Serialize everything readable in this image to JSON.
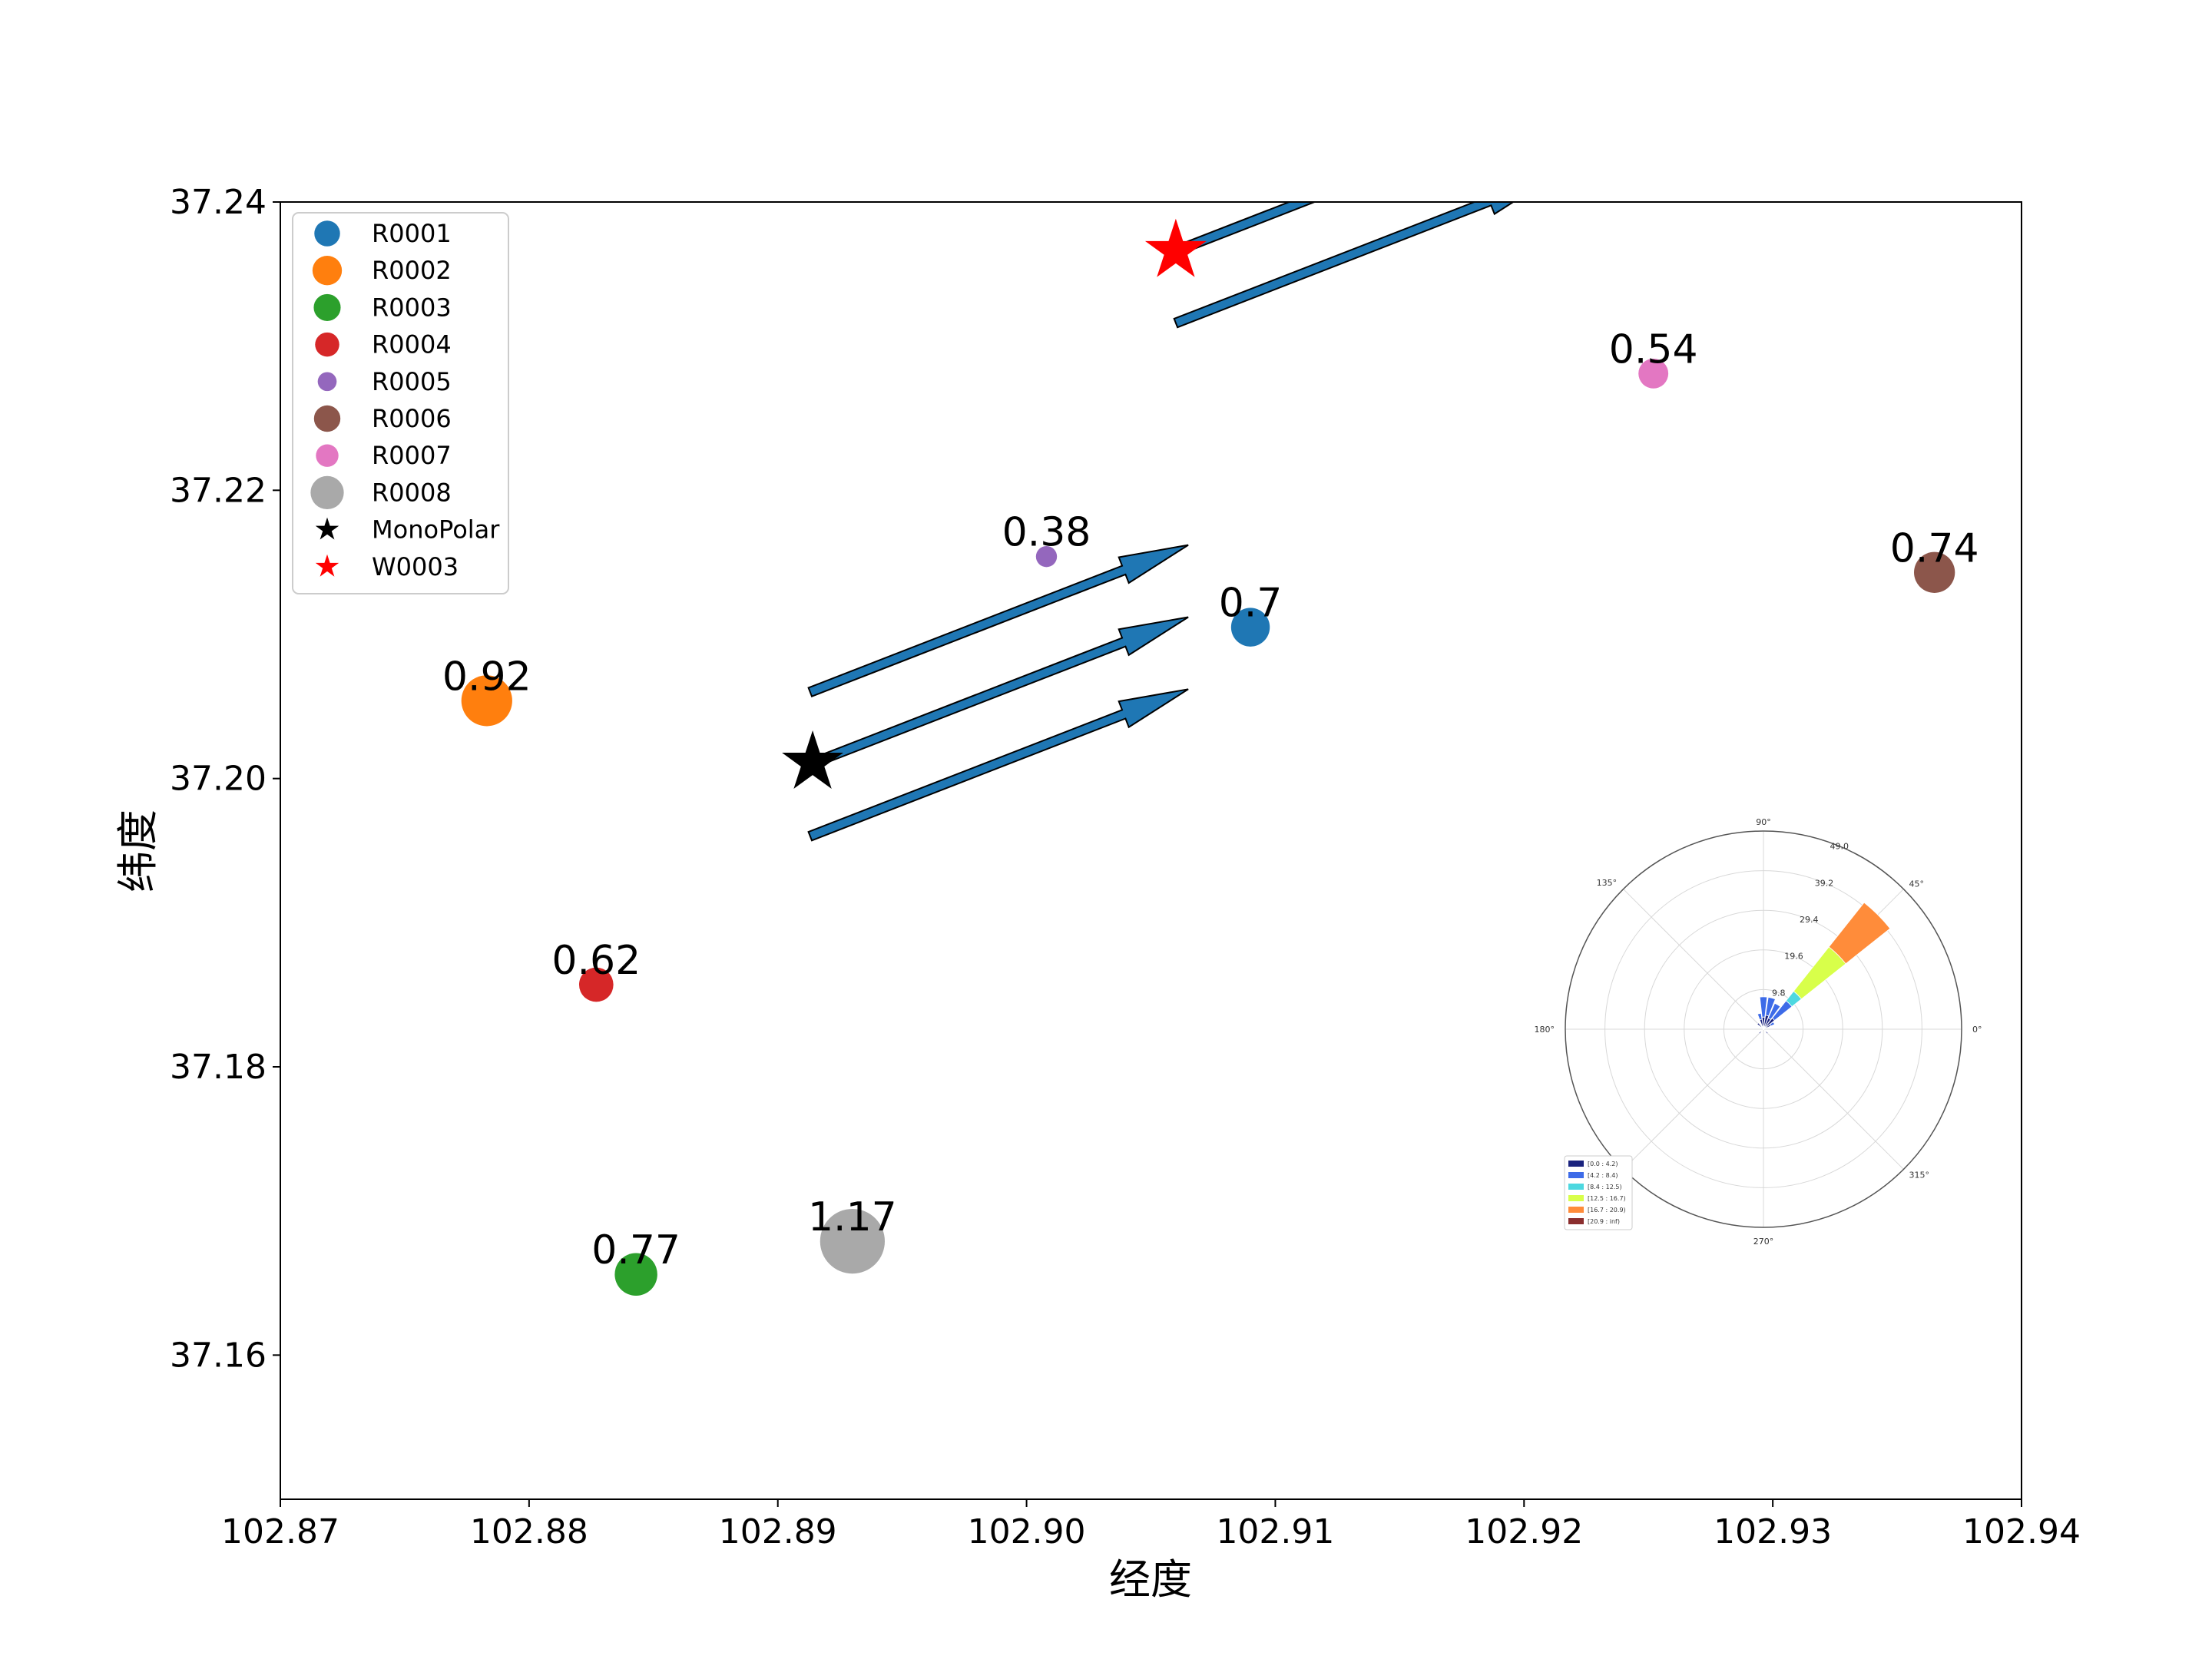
{
  "chart_data": {
    "type": "scatter",
    "xlabel": "经度",
    "ylabel": "纬度",
    "xlim": [
      102.87,
      102.94
    ],
    "ylim": [
      37.15,
      37.24
    ],
    "xticks": [
      "102.87",
      "102.88",
      "102.89",
      "102.90",
      "102.91",
      "102.92",
      "102.93",
      "102.94"
    ],
    "yticks": [
      "37.16",
      "37.18",
      "37.20",
      "37.22",
      "37.24"
    ],
    "legend_position": "upper-left",
    "receptors": [
      {
        "name": "R0001",
        "x": 102.909,
        "y": 37.2105,
        "value": "0.7",
        "color": "#1f77b4"
      },
      {
        "name": "R0002",
        "x": 102.8783,
        "y": 37.2054,
        "value": "0.92",
        "color": "#ff7f0e"
      },
      {
        "name": "R0003",
        "x": 102.8843,
        "y": 37.1656,
        "value": "0.77",
        "color": "#2ca02c"
      },
      {
        "name": "R0004",
        "x": 102.8827,
        "y": 37.1857,
        "value": "0.62",
        "color": "#d62728"
      },
      {
        "name": "R0005",
        "x": 102.9008,
        "y": 37.2154,
        "value": "0.38",
        "color": "#9467bd"
      },
      {
        "name": "R0006",
        "x": 102.9365,
        "y": 37.2143,
        "value": "0.74",
        "color": "#8c564b"
      },
      {
        "name": "R0007",
        "x": 102.9252,
        "y": 37.2281,
        "value": "0.54",
        "color": "#e377c2"
      },
      {
        "name": "R0008",
        "x": 102.893,
        "y": 37.1679,
        "value": "1.17",
        "color": "#a9a9a9"
      }
    ],
    "sources": [
      {
        "name": "MonoPolar",
        "x": 102.8914,
        "y": 37.2011,
        "color": "#000000"
      },
      {
        "name": "W0003",
        "x": 102.906,
        "y": 37.2366,
        "color": "#ff0000"
      }
    ],
    "wind_arrows": [
      {
        "x1": 102.8913,
        "y1": 37.206,
        "x2": 102.9065,
        "y2": 37.2162
      },
      {
        "x1": 102.8913,
        "y1": 37.201,
        "x2": 102.9065,
        "y2": 37.2112
      },
      {
        "x1": 102.8913,
        "y1": 37.196,
        "x2": 102.9065,
        "y2": 37.2062
      },
      {
        "x1": 102.906,
        "y1": 37.2366,
        "x2": 102.9212,
        "y2": 37.2468
      },
      {
        "x1": 102.906,
        "y1": 37.2316,
        "x2": 102.9212,
        "y2": 37.2418
      }
    ],
    "arrow_color": "#1f77b4",
    "wind_rose": {
      "type": "polar-bar",
      "angle_labels": [
        "0°",
        "45°",
        "90°",
        "135°",
        "180°",
        "270°",
        "315°"
      ],
      "radial_labels": [
        "9.8",
        "19.6",
        "29.4",
        "39.2",
        "49.0"
      ],
      "rmax": 49.0,
      "bins": [
        "[0.0 : 4.2)",
        "[4.2 : 8.4)",
        "[8.4 : 12.5)",
        "[12.5 : 16.7)",
        "[16.7 : 20.9)",
        "[20.9 : inf)"
      ],
      "bin_colors": [
        "#1a237e",
        "#3d6be8",
        "#4dd8e0",
        "#d8ff4a",
        "#ff8c3a",
        "#8b2e2e"
      ],
      "sectors": [
        {
          "angle": 45,
          "stack": [
            3.5,
            5.5,
            3,
            14,
            14,
            0
          ]
        },
        {
          "angle": 60,
          "stack": [
            3,
            4,
            0,
            0,
            0,
            0
          ]
        },
        {
          "angle": 75,
          "stack": [
            3.5,
            4.5,
            0,
            0,
            0,
            0
          ]
        },
        {
          "angle": 90,
          "stack": [
            3,
            5,
            0,
            0,
            0,
            0
          ]
        },
        {
          "angle": 105,
          "stack": [
            2.5,
            1.5,
            0,
            0,
            0,
            0
          ]
        },
        {
          "angle": 135,
          "stack": [
            2,
            0,
            0,
            0,
            0,
            0
          ]
        },
        {
          "angle": 30,
          "stack": [
            2,
            1,
            0,
            0,
            0,
            0
          ]
        },
        {
          "angle": 225,
          "stack": [
            1.5,
            0,
            0,
            0,
            0,
            0
          ]
        },
        {
          "angle": 315,
          "stack": [
            1.5,
            0,
            0,
            0,
            0,
            0
          ]
        }
      ]
    }
  }
}
